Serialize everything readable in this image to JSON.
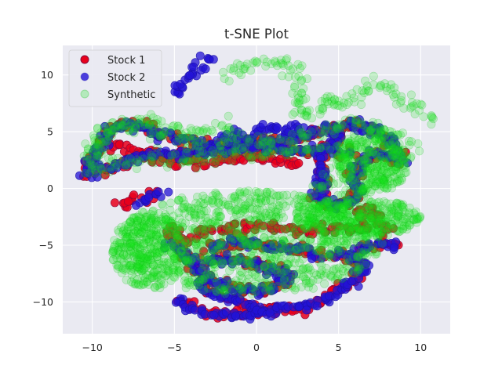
{
  "chart_data": {
    "type": "scatter",
    "title": "t-SNE Plot",
    "xlabel": "",
    "ylabel": "",
    "xlim": [
      -11.8,
      11.8
    ],
    "ylim": [
      -12.8,
      12.6
    ],
    "xticks": [
      -10,
      -5,
      0,
      5,
      10
    ],
    "yticks": [
      -10,
      -5,
      0,
      5,
      10
    ],
    "grid": true,
    "background": "#eaeaf2",
    "legend_position": "top-left",
    "series": [
      {
        "name": "Stock 1",
        "color": "#e8001c",
        "edgecolor": "#8b0a3a",
        "alpha": 0.85,
        "paths": [
          [
            [
              -10.2,
              1.8
            ],
            [
              -9.6,
              3.8
            ],
            [
              -8.5,
              5.5
            ],
            [
              -7,
              5.6
            ],
            [
              -5.8,
              4.8
            ],
            [
              -4.5,
              4.2
            ],
            [
              -3,
              3.8
            ],
            [
              -1.5,
              3.9
            ],
            [
              0,
              4.1
            ],
            [
              1.5,
              4.2
            ],
            [
              3,
              4.6
            ],
            [
              4.5,
              5.3
            ],
            [
              6,
              5.8
            ],
            [
              7.5,
              5
            ],
            [
              8.3,
              3.8
            ],
            [
              8.9,
              2.6
            ]
          ],
          [
            [
              -10.5,
              1.2
            ],
            [
              -9,
              1.8
            ],
            [
              -7.5,
              2.6
            ],
            [
              -6,
              3
            ],
            [
              -4.5,
              3.1
            ],
            [
              -3,
              3.3
            ],
            [
              -1.5,
              3.4
            ],
            [
              0,
              3.6
            ],
            [
              1.5,
              3.4
            ],
            [
              3,
              3.2
            ],
            [
              4.5,
              3.6
            ],
            [
              5.6,
              3.1
            ]
          ],
          [
            [
              -8.8,
              3.8
            ],
            [
              -7.5,
              3.3
            ],
            [
              -6,
              2.7
            ],
            [
              -4.5,
              2.3
            ],
            [
              -3,
              2.2
            ],
            [
              -1.5,
              2.6
            ],
            [
              0,
              2.8
            ],
            [
              1.5,
              2.4
            ],
            [
              2.8,
              2
            ]
          ],
          [
            [
              5.2,
              5
            ],
            [
              4.5,
              3.8
            ],
            [
              3.8,
              2.3
            ],
            [
              4.2,
              0.8
            ],
            [
              3.8,
              -0.8
            ],
            [
              4.5,
              -1.6
            ],
            [
              5.8,
              -1.3
            ],
            [
              6.2,
              -0.2
            ],
            [
              5.8,
              1.5
            ],
            [
              6.8,
              2.8
            ],
            [
              8,
              3
            ],
            [
              8.8,
              2.2
            ]
          ],
          [
            [
              -5.5,
              -3.5
            ],
            [
              -4.5,
              -4.5
            ],
            [
              -3,
              -3.8
            ],
            [
              -1.5,
              -3.5
            ],
            [
              0,
              -3.2
            ],
            [
              1.5,
              -3.6
            ],
            [
              3,
              -3.9
            ],
            [
              4.5,
              -3.4
            ],
            [
              6,
              -3.6
            ],
            [
              7,
              -3.2
            ]
          ],
          [
            [
              -5.2,
              -4.8
            ],
            [
              -4.2,
              -6
            ],
            [
              -3.5,
              -7.5
            ],
            [
              -3,
              -9
            ],
            [
              -1.5,
              -9.8
            ],
            [
              0,
              -10.5
            ],
            [
              1.5,
              -10.6
            ],
            [
              3,
              -10.5
            ],
            [
              4.5,
              -9.5
            ],
            [
              5.8,
              -8.2
            ],
            [
              6.5,
              -7
            ],
            [
              5.8,
              -6
            ],
            [
              4.5,
              -5.6
            ]
          ],
          [
            [
              -2.8,
              -5.2
            ],
            [
              -1.5,
              -4.8
            ],
            [
              0,
              -5
            ],
            [
              1.5,
              -5.2
            ],
            [
              2.8,
              -5.5
            ],
            [
              4,
              -6
            ]
          ],
          [
            [
              -3.4,
              -6.5
            ],
            [
              -2,
              -6.2
            ],
            [
              -0.5,
              -6.5
            ],
            [
              1,
              -7
            ],
            [
              2,
              -7.8
            ],
            [
              1,
              -8.8
            ],
            [
              -0.5,
              -9
            ],
            [
              -2,
              -8.6
            ],
            [
              -3,
              -7.8
            ]
          ],
          [
            [
              -4.8,
              -9.8
            ],
            [
              -3.5,
              -10.8
            ],
            [
              -2,
              -11.2
            ],
            [
              -0.5,
              -11.1
            ],
            [
              1,
              -10.8
            ]
          ],
          [
            [
              6.2,
              -5.6
            ],
            [
              7,
              -5
            ],
            [
              8,
              -4.9
            ],
            [
              8.9,
              -4.7
            ]
          ],
          [
            [
              -8.4,
              -1.5
            ],
            [
              -7.2,
              -0.8
            ],
            [
              -6.2,
              -0.5
            ]
          ],
          [
            [
              6,
              -2.2
            ],
            [
              7,
              -1.8
            ],
            [
              7.5,
              -3
            ],
            [
              8.2,
              -4
            ]
          ]
        ]
      },
      {
        "name": "Stock 2",
        "color": "#2313d6",
        "edgecolor": "#1c10a8",
        "alpha": 0.75,
        "paths": [
          [
            [
              -10.2,
              1.8
            ],
            [
              -9.6,
              3.8
            ],
            [
              -8.5,
              5.5
            ],
            [
              -7,
              5.6
            ],
            [
              -5.8,
              4.8
            ],
            [
              -4.5,
              4.2
            ],
            [
              -3,
              3.8
            ],
            [
              -1.5,
              3.9
            ],
            [
              0,
              4.1
            ],
            [
              1.5,
              4.2
            ],
            [
              3,
              4.6
            ],
            [
              4.5,
              5.3
            ],
            [
              6,
              5.8
            ],
            [
              7.5,
              5
            ],
            [
              8.3,
              3.8
            ],
            [
              8.9,
              2.6
            ]
          ],
          [
            [
              -10.5,
              1.2
            ],
            [
              -9,
              1.8
            ],
            [
              -7.5,
              2.6
            ],
            [
              -6,
              3
            ],
            [
              -4.5,
              3.1
            ],
            [
              -3,
              3.3
            ],
            [
              -1.5,
              3.4
            ],
            [
              0,
              3.6
            ],
            [
              1.5,
              3.4
            ],
            [
              3,
              3.2
            ],
            [
              4.5,
              3.6
            ],
            [
              5.6,
              3.1
            ]
          ],
          [
            [
              5.2,
              5
            ],
            [
              4.5,
              3.8
            ],
            [
              3.8,
              2.3
            ],
            [
              4.2,
              0.8
            ],
            [
              3.8,
              -0.8
            ],
            [
              4.5,
              -1.6
            ],
            [
              5.8,
              -1.3
            ],
            [
              6.2,
              -0.2
            ],
            [
              5.8,
              1.5
            ],
            [
              6.8,
              2.8
            ],
            [
              8,
              3
            ],
            [
              8.8,
              2.2
            ]
          ],
          [
            [
              -4.8,
              8.3
            ],
            [
              -4.2,
              9.8
            ],
            [
              -3.4,
              10.8
            ],
            [
              -2.7,
              11.6
            ]
          ],
          [
            [
              -2.2,
              4.5
            ],
            [
              -1,
              4.7
            ],
            [
              0.2,
              5
            ],
            [
              1,
              5.5
            ],
            [
              2,
              5.3
            ],
            [
              3,
              5.5
            ]
          ],
          [
            [
              -5.2,
              -4.8
            ],
            [
              -4.2,
              -6
            ],
            [
              -3.5,
              -7.5
            ],
            [
              -3,
              -9
            ],
            [
              -1.5,
              -9.8
            ],
            [
              0,
              -10.5
            ],
            [
              1.5,
              -10.6
            ],
            [
              3,
              -10.5
            ],
            [
              4.5,
              -9.5
            ],
            [
              5.8,
              -8.2
            ],
            [
              6.5,
              -7
            ],
            [
              5.8,
              -6
            ],
            [
              4.5,
              -5.6
            ]
          ],
          [
            [
              -2.8,
              -5.2
            ],
            [
              -1.5,
              -4.8
            ],
            [
              0,
              -5
            ],
            [
              1.5,
              -5.2
            ],
            [
              2.8,
              -5.5
            ],
            [
              4,
              -6
            ]
          ],
          [
            [
              -3.4,
              -6.5
            ],
            [
              -2,
              -6.2
            ],
            [
              -0.5,
              -6.5
            ],
            [
              1,
              -7
            ],
            [
              2,
              -7.8
            ],
            [
              1,
              -8.8
            ],
            [
              -0.5,
              -9
            ],
            [
              -2,
              -8.6
            ],
            [
              -3,
              -7.8
            ]
          ],
          [
            [
              -4.8,
              -9.8
            ],
            [
              -3.5,
              -10.8
            ],
            [
              -2,
              -11.2
            ],
            [
              -0.5,
              -11.1
            ],
            [
              1,
              -10.8
            ]
          ],
          [
            [
              -7.2,
              -1.2
            ],
            [
              -6.4,
              -0.7
            ],
            [
              -5.6,
              -0.3
            ]
          ],
          [
            [
              6.2,
              -5.6
            ],
            [
              7,
              -5
            ],
            [
              8,
              -4.9
            ],
            [
              8.9,
              -4.7
            ]
          ]
        ]
      },
      {
        "name": "Synthetic",
        "color": "#13e81b",
        "edgecolor": "#10c016",
        "alpha": 0.2,
        "paths": [
          [
            [
              -1.5,
              9.5
            ],
            [
              -1.2,
              10.5
            ],
            [
              0,
              11
            ],
            [
              1.5,
              11.2
            ],
            [
              2.5,
              10.6
            ],
            [
              2.6,
              9
            ],
            [
              2.5,
              7.5
            ],
            [
              3,
              6.3
            ],
            [
              4,
              7
            ],
            [
              4.6,
              8.2
            ],
            [
              5.3,
              7.3
            ],
            [
              6,
              8.2
            ],
            [
              7,
              9.2
            ],
            [
              8,
              9
            ],
            [
              9,
              7.9
            ],
            [
              10,
              6.8
            ],
            [
              10.8,
              5.9
            ]
          ],
          [
            [
              -10.2,
              1.8
            ],
            [
              -9.6,
              3.8
            ],
            [
              -8.5,
              5.5
            ],
            [
              -7,
              5.6
            ],
            [
              -5.8,
              4.8
            ],
            [
              -4.5,
              4.2
            ],
            [
              -3,
              3.8
            ],
            [
              -1.5,
              3.9
            ],
            [
              0,
              4.1
            ],
            [
              1.5,
              4.2
            ],
            [
              3,
              4.6
            ],
            [
              4.5,
              5.3
            ],
            [
              6,
              5.8
            ],
            [
              7.5,
              5
            ],
            [
              8.3,
              3.8
            ],
            [
              8.9,
              2.6
            ]
          ],
          [
            [
              -10.3,
              1.3
            ],
            [
              -9,
              2.1
            ],
            [
              -7.5,
              2.4
            ],
            [
              -6,
              2.5
            ],
            [
              -4.5,
              2.5
            ],
            [
              -3,
              2.6
            ],
            [
              -1.5,
              2.8
            ],
            [
              0,
              3
            ],
            [
              1.5,
              3.2
            ],
            [
              3,
              3.4
            ],
            [
              4.5,
              3.6
            ],
            [
              6,
              4
            ],
            [
              7.5,
              4.8
            ]
          ],
          [
            [
              -10.3,
              3
            ],
            [
              -9.5,
              5
            ],
            [
              -8.2,
              5.8
            ],
            [
              -6.5,
              6
            ],
            [
              -5,
              5.4
            ],
            [
              -4,
              4.8
            ],
            [
              -2.5,
              5.2
            ],
            [
              -1,
              5.4
            ]
          ],
          [
            [
              3.2,
              -0.2
            ],
            [
              4.2,
              0.6
            ],
            [
              5,
              1.5
            ],
            [
              5.6,
              3
            ],
            [
              6,
              4.2
            ],
            [
              7,
              5.2
            ],
            [
              8.2,
              5.1
            ],
            [
              9.2,
              3.8
            ],
            [
              8.5,
              2
            ],
            [
              7.3,
              0.7
            ],
            [
              6,
              -0.6
            ],
            [
              4.6,
              -1.2
            ]
          ]
        ],
        "blobs": [
          {
            "cx": -0.5,
            "cy": -4.8,
            "rx": 8.2,
            "ry": 4.6,
            "n": 950,
            "mode": "fill"
          },
          {
            "cx": -6.5,
            "cy": -5.5,
            "rx": 2.3,
            "ry": 3.4,
            "n": 260,
            "mode": "fill"
          },
          {
            "cx": 6.2,
            "cy": -2.6,
            "rx": 3.8,
            "ry": 1.7,
            "n": 340,
            "mode": "fill"
          },
          {
            "cx": 7.0,
            "cy": 2.0,
            "rx": 2.2,
            "ry": 2.4,
            "n": 220,
            "mode": "fill"
          }
        ]
      }
    ]
  }
}
